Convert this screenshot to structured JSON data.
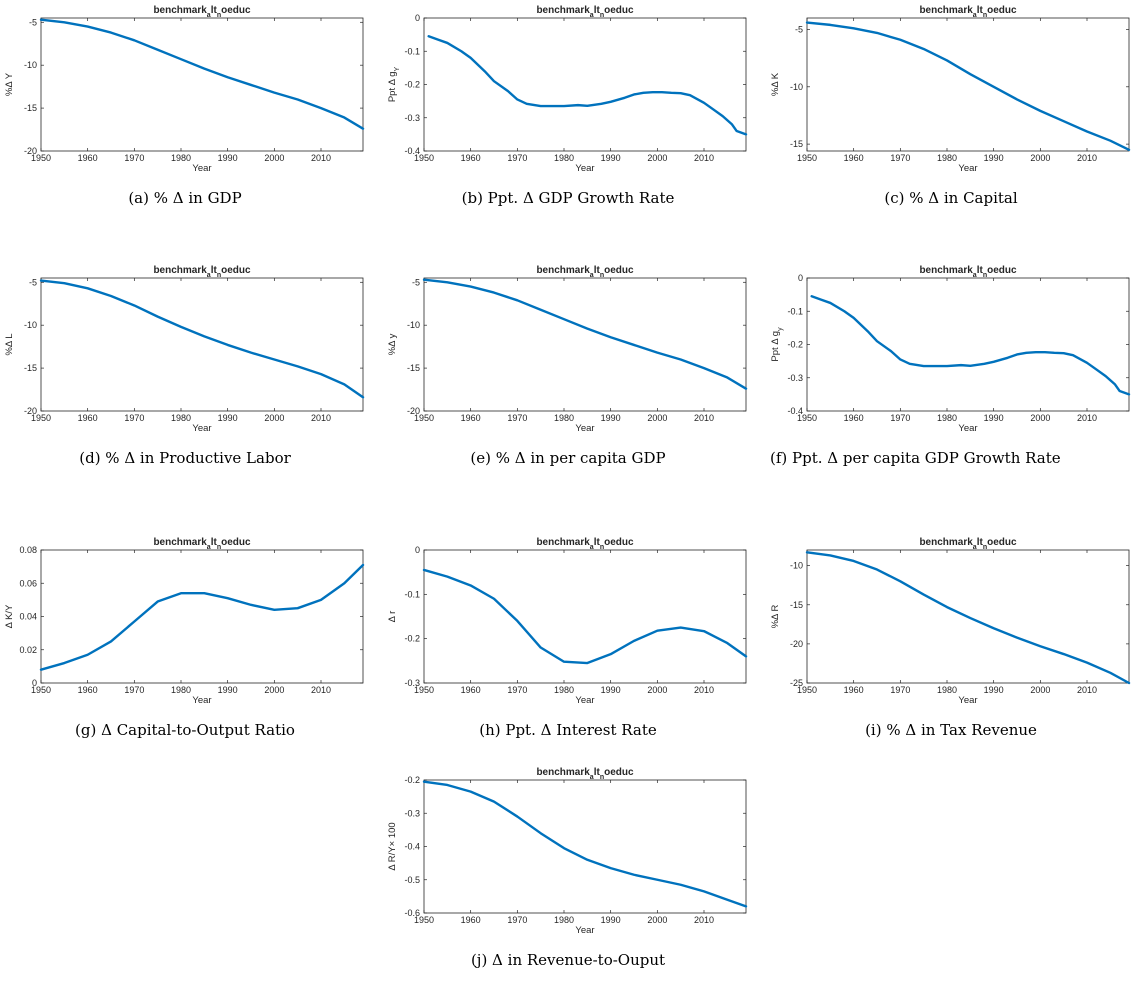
{
  "colors": {
    "series": "#0072bd",
    "axis": "#262626"
  },
  "chart_data": [
    {
      "id": "a",
      "type": "line",
      "title": "benchmark_alt_noeduc",
      "xlabel": "Year",
      "ylabel": "%Δ Y",
      "caption": "(a) % Δ in GDP",
      "xlim": [
        1950,
        2019
      ],
      "ylim": [
        -20,
        -4.5
      ],
      "xticks": [
        1950,
        1960,
        1970,
        1980,
        1990,
        2000,
        2010
      ],
      "yticks": [
        -20,
        -15,
        -10,
        -5
      ],
      "series": [
        {
          "x": [
            1950,
            1955,
            1960,
            1965,
            1970,
            1975,
            1980,
            1985,
            1990,
            1995,
            2000,
            2005,
            2010,
            2015,
            2019
          ],
          "y": [
            -4.7,
            -5.0,
            -5.5,
            -6.2,
            -7.1,
            -8.2,
            -9.3,
            -10.4,
            -11.4,
            -12.3,
            -13.2,
            -14.0,
            -15.0,
            -16.1,
            -17.4
          ]
        }
      ]
    },
    {
      "id": "b",
      "type": "line",
      "title": "benchmark_alt_noeduc",
      "xlabel": "Year",
      "ylabel": "Ppt Δ g_Y",
      "caption": "(b) Ppt. Δ GDP Growth Rate",
      "xlim": [
        1950,
        2019
      ],
      "ylim": [
        -0.4,
        0
      ],
      "xticks": [
        1950,
        1960,
        1970,
        1980,
        1990,
        2000,
        2010
      ],
      "yticks": [
        -0.4,
        -0.3,
        -0.2,
        -0.1,
        0
      ],
      "series": [
        {
          "x": [
            1951,
            1953,
            1955,
            1958,
            1960,
            1963,
            1965,
            1968,
            1970,
            1972,
            1975,
            1980,
            1983,
            1985,
            1988,
            1990,
            1993,
            1995,
            1997,
            1999,
            2001,
            2003,
            2005,
            2007,
            2010,
            2012,
            2014,
            2016,
            2017,
            2019
          ],
          "y": [
            -0.055,
            -0.065,
            -0.075,
            -0.1,
            -0.12,
            -0.16,
            -0.19,
            -0.22,
            -0.245,
            -0.258,
            -0.265,
            -0.265,
            -0.262,
            -0.264,
            -0.258,
            -0.252,
            -0.24,
            -0.23,
            -0.225,
            -0.223,
            -0.223,
            -0.225,
            -0.226,
            -0.232,
            -0.255,
            -0.275,
            -0.295,
            -0.32,
            -0.34,
            -0.35
          ]
        }
      ]
    },
    {
      "id": "c",
      "type": "line",
      "title": "benchmark_alt_noeduc",
      "xlabel": "Year",
      "ylabel": "%Δ K",
      "caption": "(c) % Δ in Capital",
      "xlim": [
        1950,
        2019
      ],
      "ylim": [
        -15.6,
        -4
      ],
      "xticks": [
        1950,
        1960,
        1970,
        1980,
        1990,
        2000,
        2010
      ],
      "yticks": [
        -15,
        -10,
        -5
      ],
      "series": [
        {
          "x": [
            1950,
            1955,
            1960,
            1965,
            1970,
            1975,
            1980,
            1985,
            1990,
            1995,
            2000,
            2005,
            2010,
            2015,
            2019
          ],
          "y": [
            -4.4,
            -4.6,
            -4.9,
            -5.3,
            -5.9,
            -6.7,
            -7.7,
            -8.9,
            -10.0,
            -11.1,
            -12.1,
            -13.0,
            -13.9,
            -14.7,
            -15.5
          ]
        }
      ]
    },
    {
      "id": "d",
      "type": "line",
      "title": "benchmark_alt_noeduc",
      "xlabel": "Year",
      "ylabel": "%Δ L",
      "caption": "(d) % Δ in Productive Labor",
      "xlim": [
        1950,
        2019
      ],
      "ylim": [
        -20,
        -4.5
      ],
      "xticks": [
        1950,
        1960,
        1970,
        1980,
        1990,
        2000,
        2010
      ],
      "yticks": [
        -20,
        -15,
        -10,
        -5
      ],
      "series": [
        {
          "x": [
            1950,
            1955,
            1960,
            1965,
            1970,
            1975,
            1980,
            1985,
            1990,
            1995,
            2000,
            2005,
            2010,
            2015,
            2019
          ],
          "y": [
            -4.8,
            -5.1,
            -5.7,
            -6.6,
            -7.7,
            -9.0,
            -10.2,
            -11.3,
            -12.3,
            -13.2,
            -14.0,
            -14.8,
            -15.7,
            -16.9,
            -18.4
          ]
        }
      ]
    },
    {
      "id": "e",
      "type": "line",
      "title": "benchmark_alt_noeduc",
      "xlabel": "Year",
      "ylabel": "%Δ y",
      "caption": "(e) % Δ in per capita GDP",
      "xlim": [
        1950,
        2019
      ],
      "ylim": [
        -20,
        -4.5
      ],
      "xticks": [
        1950,
        1960,
        1970,
        1980,
        1990,
        2000,
        2010
      ],
      "yticks": [
        -20,
        -15,
        -10,
        -5
      ],
      "series": [
        {
          "x": [
            1950,
            1955,
            1960,
            1965,
            1970,
            1975,
            1980,
            1985,
            1990,
            1995,
            2000,
            2005,
            2010,
            2015,
            2019
          ],
          "y": [
            -4.7,
            -5.0,
            -5.5,
            -6.2,
            -7.1,
            -8.2,
            -9.3,
            -10.4,
            -11.4,
            -12.3,
            -13.2,
            -14.0,
            -15.0,
            -16.1,
            -17.4
          ]
        }
      ]
    },
    {
      "id": "f",
      "type": "line",
      "title": "benchmark_alt_noeduc",
      "xlabel": "Year",
      "ylabel": "Ppt Δ g_y",
      "caption": "(f) Ppt. Δ per capita GDP Growth Rate",
      "xlim": [
        1950,
        2019
      ],
      "ylim": [
        -0.4,
        0
      ],
      "xticks": [
        1950,
        1960,
        1970,
        1980,
        1990,
        2000,
        2010
      ],
      "yticks": [
        -0.4,
        -0.3,
        -0.2,
        -0.1,
        0
      ],
      "series": [
        {
          "x": [
            1951,
            1953,
            1955,
            1958,
            1960,
            1963,
            1965,
            1968,
            1970,
            1972,
            1975,
            1980,
            1983,
            1985,
            1988,
            1990,
            1993,
            1995,
            1997,
            1999,
            2001,
            2003,
            2005,
            2007,
            2010,
            2012,
            2014,
            2016,
            2017,
            2019
          ],
          "y": [
            -0.055,
            -0.065,
            -0.075,
            -0.1,
            -0.12,
            -0.16,
            -0.19,
            -0.22,
            -0.245,
            -0.258,
            -0.265,
            -0.265,
            -0.262,
            -0.264,
            -0.258,
            -0.252,
            -0.24,
            -0.23,
            -0.225,
            -0.223,
            -0.223,
            -0.225,
            -0.226,
            -0.232,
            -0.255,
            -0.275,
            -0.295,
            -0.32,
            -0.34,
            -0.35
          ]
        }
      ]
    },
    {
      "id": "g",
      "type": "line",
      "title": "benchmark_alt_noeduc",
      "xlabel": "Year",
      "ylabel": "Δ K/Y",
      "caption": "(g) Δ Capital-to-Output Ratio",
      "xlim": [
        1950,
        2019
      ],
      "ylim": [
        0,
        0.08
      ],
      "xticks": [
        1950,
        1960,
        1970,
        1980,
        1990,
        2000,
        2010
      ],
      "yticks": [
        0,
        0.02,
        0.04,
        0.06,
        0.08
      ],
      "series": [
        {
          "x": [
            1950,
            1955,
            1960,
            1965,
            1970,
            1975,
            1980,
            1985,
            1990,
            1995,
            2000,
            2005,
            2010,
            2015,
            2019
          ],
          "y": [
            0.008,
            0.012,
            0.017,
            0.025,
            0.037,
            0.049,
            0.054,
            0.054,
            0.051,
            0.047,
            0.044,
            0.045,
            0.05,
            0.06,
            0.071
          ]
        }
      ]
    },
    {
      "id": "h",
      "type": "line",
      "title": "benchmark_alt_noeduc",
      "xlabel": "Year",
      "ylabel": "Δ r",
      "caption": "(h) Ppt. Δ Interest Rate",
      "xlim": [
        1950,
        2019
      ],
      "ylim": [
        -0.3,
        0
      ],
      "xticks": [
        1950,
        1960,
        1970,
        1980,
        1990,
        2000,
        2010
      ],
      "yticks": [
        -0.3,
        -0.2,
        -0.1,
        0
      ],
      "series": [
        {
          "x": [
            1950,
            1955,
            1960,
            1965,
            1970,
            1975,
            1980,
            1985,
            1990,
            1995,
            2000,
            2005,
            2010,
            2015,
            2019
          ],
          "y": [
            -0.045,
            -0.06,
            -0.08,
            -0.11,
            -0.16,
            -0.22,
            -0.252,
            -0.255,
            -0.235,
            -0.205,
            -0.182,
            -0.175,
            -0.183,
            -0.21,
            -0.24
          ]
        }
      ]
    },
    {
      "id": "i",
      "type": "line",
      "title": "benchmark_alt_noeduc",
      "xlabel": "Year",
      "ylabel": "%Δ R",
      "caption": "(i) % Δ in Tax Revenue",
      "xlim": [
        1950,
        2019
      ],
      "ylim": [
        -25,
        -8
      ],
      "xticks": [
        1950,
        1960,
        1970,
        1980,
        1990,
        2000,
        2010
      ],
      "yticks": [
        -25,
        -20,
        -15,
        -10
      ],
      "series": [
        {
          "x": [
            1950,
            1955,
            1960,
            1965,
            1970,
            1975,
            1980,
            1985,
            1990,
            1995,
            2000,
            2005,
            2010,
            2015,
            2019
          ],
          "y": [
            -8.3,
            -8.7,
            -9.4,
            -10.5,
            -12.0,
            -13.7,
            -15.3,
            -16.7,
            -18.0,
            -19.2,
            -20.3,
            -21.3,
            -22.4,
            -23.7,
            -25.0
          ]
        }
      ]
    },
    {
      "id": "j",
      "type": "line",
      "title": "benchmark_alt_noeduc",
      "xlabel": "Year",
      "ylabel": "Δ R/Y× 100",
      "caption": "(j) Δ in Revenue-to-Ouput",
      "xlim": [
        1950,
        2019
      ],
      "ylim": [
        -0.6,
        -0.2
      ],
      "xticks": [
        1950,
        1960,
        1970,
        1980,
        1990,
        2000,
        2010
      ],
      "yticks": [
        -0.6,
        -0.5,
        -0.4,
        -0.3,
        -0.2
      ],
      "series": [
        {
          "x": [
            1950,
            1955,
            1960,
            1965,
            1970,
            1975,
            1980,
            1985,
            1990,
            1995,
            2000,
            2005,
            2010,
            2015,
            2019
          ],
          "y": [
            -0.205,
            -0.215,
            -0.235,
            -0.265,
            -0.31,
            -0.36,
            -0.405,
            -0.44,
            -0.465,
            -0.485,
            -0.5,
            -0.515,
            -0.535,
            -0.56,
            -0.58
          ]
        }
      ]
    }
  ]
}
